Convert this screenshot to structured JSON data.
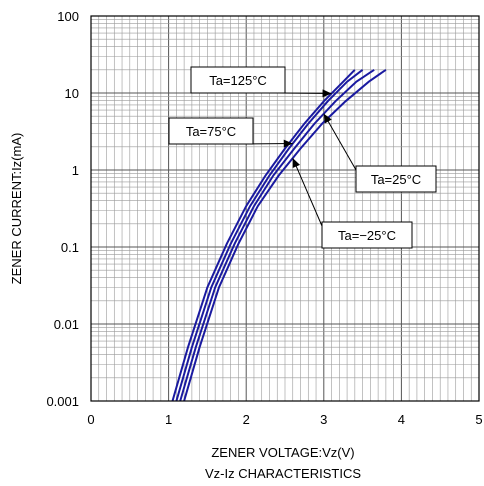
{
  "chart_data": {
    "type": "line",
    "xlabel": "ZENER VOLTAGE:Vz(V)",
    "ylabel": "ZENER CURRENT:Iz(mA)",
    "caption": "Vz-Iz CHARACTERISTICS",
    "xlim": [
      0,
      5
    ],
    "ylim": [
      0.001,
      100
    ],
    "yscale": "log",
    "grid": true,
    "x_ticks": [
      "0",
      "1",
      "2",
      "3",
      "4",
      "5"
    ],
    "y_ticks": [
      "0.001",
      "0.01",
      "0.1",
      "1",
      "10",
      "100"
    ],
    "series_color": "#1a1aa0",
    "series": [
      {
        "name": "Ta=125°C",
        "points": [
          [
            1.05,
            0.001
          ],
          [
            1.25,
            0.005
          ],
          [
            1.5,
            0.03
          ],
          [
            1.75,
            0.11
          ],
          [
            2.0,
            0.34
          ],
          [
            2.25,
            0.85
          ],
          [
            2.5,
            1.9
          ],
          [
            2.75,
            4.0
          ],
          [
            3.0,
            7.8
          ],
          [
            3.25,
            14
          ],
          [
            3.4,
            20
          ]
        ]
      },
      {
        "name": "Ta=75°C",
        "points": [
          [
            1.1,
            0.001
          ],
          [
            1.3,
            0.005
          ],
          [
            1.55,
            0.03
          ],
          [
            1.8,
            0.11
          ],
          [
            2.05,
            0.34
          ],
          [
            2.3,
            0.85
          ],
          [
            2.55,
            1.9
          ],
          [
            2.8,
            4.0
          ],
          [
            3.05,
            7.8
          ],
          [
            3.3,
            14
          ],
          [
            3.5,
            20
          ]
        ]
      },
      {
        "name": "Ta=25°C",
        "points": [
          [
            1.15,
            0.001
          ],
          [
            1.35,
            0.005
          ],
          [
            1.6,
            0.03
          ],
          [
            1.85,
            0.11
          ],
          [
            2.1,
            0.34
          ],
          [
            2.35,
            0.85
          ],
          [
            2.62,
            1.9
          ],
          [
            2.88,
            4.0
          ],
          [
            3.15,
            7.8
          ],
          [
            3.42,
            14
          ],
          [
            3.65,
            20
          ]
        ]
      },
      {
        "name": "Ta=−25°C",
        "points": [
          [
            1.2,
            0.001
          ],
          [
            1.4,
            0.005
          ],
          [
            1.65,
            0.03
          ],
          [
            1.9,
            0.11
          ],
          [
            2.15,
            0.34
          ],
          [
            2.42,
            0.85
          ],
          [
            2.7,
            1.9
          ],
          [
            2.98,
            4.0
          ],
          [
            3.28,
            7.8
          ],
          [
            3.58,
            14
          ],
          [
            3.8,
            20
          ]
        ]
      }
    ],
    "annotations": [
      {
        "label": "Ta=125°C",
        "target_series": 0,
        "target_x": 3.1
      },
      {
        "label": "Ta=75°C",
        "target_series": 1,
        "target_x": 2.6
      },
      {
        "label": "Ta=25°C",
        "target_series": 2,
        "target_x": 3.0
      },
      {
        "label": "Ta=−25°C",
        "target_series": 3,
        "target_x": 2.6
      }
    ]
  }
}
